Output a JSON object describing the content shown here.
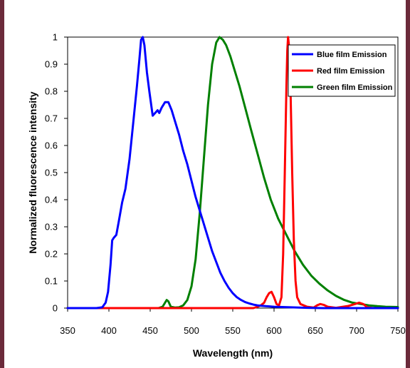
{
  "chart_data": {
    "type": "line",
    "xlabel": "Wavelength  (nm)",
    "ylabel": "Normalized fluorescence  intensity",
    "xlim": [
      350,
      750
    ],
    "ylim": [
      0,
      1
    ],
    "x_ticks": [
      "350",
      "400",
      "450",
      "500",
      "550",
      "600",
      "650",
      "700",
      "750"
    ],
    "y_ticks": [
      "0",
      "0.1",
      "0.2",
      "0.3",
      "0.4",
      "0.5",
      "0.6",
      "0.7",
      "0.8",
      "0.9",
      "1"
    ],
    "legend_position": "top-right",
    "grid": false,
    "series": [
      {
        "name": "Blue film Emission",
        "color": "#0000ff",
        "points": [
          [
            350,
            0
          ],
          [
            385,
            0
          ],
          [
            392,
            0.003
          ],
          [
            396,
            0.02
          ],
          [
            399,
            0.06
          ],
          [
            402,
            0.16
          ],
          [
            404,
            0.25
          ],
          [
            406,
            0.26
          ],
          [
            409,
            0.27
          ],
          [
            412,
            0.32
          ],
          [
            416,
            0.39
          ],
          [
            420,
            0.44
          ],
          [
            425,
            0.55
          ],
          [
            430,
            0.7
          ],
          [
            434,
            0.82
          ],
          [
            437,
            0.92
          ],
          [
            439,
            0.99
          ],
          [
            441,
            1.0
          ],
          [
            443,
            0.97
          ],
          [
            446,
            0.87
          ],
          [
            449,
            0.8
          ],
          [
            453,
            0.71
          ],
          [
            456,
            0.72
          ],
          [
            459,
            0.73
          ],
          [
            461,
            0.72
          ],
          [
            464,
            0.74
          ],
          [
            468,
            0.76
          ],
          [
            472,
            0.76
          ],
          [
            476,
            0.73
          ],
          [
            480,
            0.69
          ],
          [
            485,
            0.64
          ],
          [
            490,
            0.58
          ],
          [
            495,
            0.53
          ],
          [
            500,
            0.47
          ],
          [
            505,
            0.41
          ],
          [
            510,
            0.36
          ],
          [
            515,
            0.31
          ],
          [
            520,
            0.26
          ],
          [
            525,
            0.21
          ],
          [
            530,
            0.17
          ],
          [
            535,
            0.13
          ],
          [
            540,
            0.1
          ],
          [
            545,
            0.075
          ],
          [
            550,
            0.055
          ],
          [
            555,
            0.04
          ],
          [
            560,
            0.03
          ],
          [
            565,
            0.022
          ],
          [
            570,
            0.017
          ],
          [
            575,
            0.013
          ],
          [
            580,
            0.01
          ],
          [
            590,
            0.007
          ],
          [
            600,
            0.005
          ],
          [
            620,
            0.003
          ],
          [
            640,
            0.001
          ],
          [
            660,
            0.0
          ],
          [
            750,
            0.0
          ]
        ]
      },
      {
        "name": "Red film Emission",
        "color": "#ff0000",
        "points": [
          [
            350,
            0
          ],
          [
            575,
            0
          ],
          [
            580,
            0.005
          ],
          [
            584,
            0.01
          ],
          [
            588,
            0.02
          ],
          [
            591,
            0.04
          ],
          [
            594,
            0.055
          ],
          [
            597,
            0.06
          ],
          [
            600,
            0.04
          ],
          [
            603,
            0.015
          ],
          [
            606,
            0.01
          ],
          [
            609,
            0.04
          ],
          [
            611,
            0.2
          ],
          [
            613,
            0.5
          ],
          [
            615,
            0.82
          ],
          [
            616,
            0.95
          ],
          [
            617,
            1.0
          ],
          [
            618,
            0.97
          ],
          [
            620,
            0.8
          ],
          [
            622,
            0.5
          ],
          [
            624,
            0.25
          ],
          [
            626,
            0.1
          ],
          [
            628,
            0.04
          ],
          [
            632,
            0.015
          ],
          [
            640,
            0.005
          ],
          [
            648,
            0.002
          ],
          [
            652,
            0.01
          ],
          [
            656,
            0.015
          ],
          [
            660,
            0.012
          ],
          [
            665,
            0.005
          ],
          [
            675,
            0.001
          ],
          [
            690,
            0.008
          ],
          [
            698,
            0.015
          ],
          [
            703,
            0.02
          ],
          [
            708,
            0.015
          ],
          [
            713,
            0.003
          ],
          [
            720,
            0.0
          ],
          [
            750,
            0.0
          ]
        ]
      },
      {
        "name": "Green film Emission",
        "color": "#008000",
        "points": [
          [
            350,
            0
          ],
          [
            460,
            0
          ],
          [
            465,
            0.005
          ],
          [
            468,
            0.02
          ],
          [
            470,
            0.03
          ],
          [
            472,
            0.025
          ],
          [
            475,
            0.005
          ],
          [
            480,
            0.002
          ],
          [
            485,
            0.003
          ],
          [
            490,
            0.01
          ],
          [
            495,
            0.03
          ],
          [
            500,
            0.08
          ],
          [
            505,
            0.18
          ],
          [
            510,
            0.35
          ],
          [
            515,
            0.55
          ],
          [
            520,
            0.75
          ],
          [
            525,
            0.9
          ],
          [
            530,
            0.98
          ],
          [
            534,
            1.0
          ],
          [
            538,
            0.99
          ],
          [
            542,
            0.97
          ],
          [
            547,
            0.93
          ],
          [
            552,
            0.88
          ],
          [
            558,
            0.82
          ],
          [
            565,
            0.74
          ],
          [
            572,
            0.66
          ],
          [
            580,
            0.57
          ],
          [
            588,
            0.48
          ],
          [
            596,
            0.4
          ],
          [
            605,
            0.33
          ],
          [
            615,
            0.27
          ],
          [
            625,
            0.21
          ],
          [
            635,
            0.16
          ],
          [
            645,
            0.12
          ],
          [
            655,
            0.09
          ],
          [
            665,
            0.065
          ],
          [
            675,
            0.045
          ],
          [
            685,
            0.03
          ],
          [
            695,
            0.02
          ],
          [
            705,
            0.015
          ],
          [
            715,
            0.01
          ],
          [
            725,
            0.007
          ],
          [
            735,
            0.005
          ],
          [
            750,
            0.004
          ]
        ]
      }
    ]
  }
}
